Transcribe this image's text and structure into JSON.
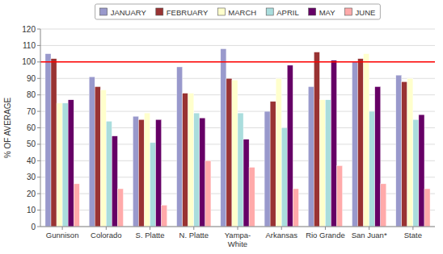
{
  "chart_data": {
    "type": "bar",
    "categories": [
      "Gunnison",
      "Colorado",
      "S. Platte",
      "N. Platte",
      "Yampa-\nWhite",
      "Arkansas",
      "Rio Grande",
      "San Juan*",
      "State"
    ],
    "series": [
      {
        "name": "JANUARY",
        "color": "#9999cc",
        "values": [
          105,
          91,
          67,
          97,
          108,
          70,
          85,
          100,
          92
        ]
      },
      {
        "name": "FEBRUARY",
        "color": "#993333",
        "values": [
          102,
          85,
          65,
          81,
          90,
          76,
          106,
          102,
          88
        ]
      },
      {
        "name": "MARCH",
        "color": "#ffffcc",
        "values": [
          75,
          83,
          69,
          81,
          89,
          90,
          77,
          105,
          90
        ]
      },
      {
        "name": "APRIL",
        "color": "#aadddd",
        "values": [
          75,
          64,
          51,
          69,
          69,
          60,
          77,
          70,
          65
        ]
      },
      {
        "name": "MAY",
        "color": "#660066",
        "values": [
          77,
          55,
          65,
          66,
          53,
          98,
          101,
          85,
          68
        ]
      },
      {
        "name": "JUNE",
        "color": "#ffaaaa",
        "values": [
          26,
          23,
          13,
          40,
          36,
          23,
          37,
          26,
          23
        ]
      }
    ],
    "ylabel": "% OF AVERAGE",
    "ylim": [
      0,
      120
    ],
    "yticks": [
      0,
      10,
      20,
      30,
      40,
      50,
      60,
      70,
      80,
      90,
      100,
      110,
      120
    ],
    "hline": {
      "y": 100,
      "color": "#ff0000"
    },
    "grid": true,
    "legend": "top"
  }
}
